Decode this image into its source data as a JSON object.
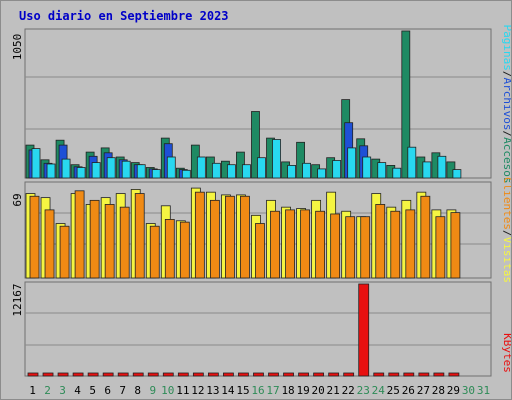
{
  "chart_data": {
    "type": "bar",
    "title": "Uso diario en Septiembre 2023",
    "categories": [
      "1",
      "2",
      "3",
      "4",
      "5",
      "6",
      "7",
      "8",
      "9",
      "10",
      "11",
      "12",
      "13",
      "14",
      "15",
      "16",
      "17",
      "18",
      "19",
      "20",
      "21",
      "22",
      "23",
      "24",
      "25",
      "26",
      "27",
      "28",
      "29",
      "30",
      "31"
    ],
    "weekend_days": [
      2,
      3,
      9,
      10,
      16,
      17,
      23,
      24,
      30,
      31
    ],
    "panels": [
      {
        "id": "top",
        "ymax_label": "1050",
        "ylim": [
          0,
          1050
        ],
        "series": [
          {
            "name": "Accesos",
            "color": "#1e8a63",
            "values": [
              235,
              130,
              270,
              95,
              185,
              215,
              150,
              110,
              75,
              285,
              70,
              235,
              150,
              120,
              185,
              475,
              285,
              115,
              255,
              95,
              145,
              560,
              280,
              135,
              90,
              1050,
              150,
              180,
              115,
              0,
              0
            ]
          },
          {
            "name": "Archivos",
            "color": "#1e50d6",
            "values": [
              200,
              105,
              235,
              80,
              155,
              180,
              130,
              95,
              65,
              245,
              60,
              0,
              0,
              0,
              0,
              0,
              0,
              0,
              0,
              0,
              0,
              395,
              230,
              0,
              0,
              0,
              0,
              0,
              0,
              0,
              0
            ]
          },
          {
            "name": "Páginas",
            "color": "#28d8f0",
            "values": [
              210,
              100,
              135,
              75,
              110,
              145,
              120,
              95,
              60,
              150,
              55,
              150,
              105,
              95,
              95,
              145,
              275,
              90,
              105,
              65,
              125,
              215,
              150,
              110,
              70,
              220,
              115,
              155,
              60,
              0,
              0
            ]
          }
        ]
      },
      {
        "id": "middle",
        "ymax_label": "69",
        "ylim": [
          0,
          69
        ],
        "series": [
          {
            "name": "Visitas",
            "color": "#f5f542",
            "values": [
              62,
              59,
              40,
              62,
              54,
              59,
              62,
              65,
              40,
              53,
              42,
              66,
              63,
              61,
              61,
              46,
              57,
              52,
              51,
              57,
              63,
              49,
              45,
              62,
              52,
              57,
              63,
              50,
              50,
              0,
              0
            ]
          },
          {
            "name": "Clientes",
            "color": "#f08a14",
            "values": [
              60,
              50,
              38,
              64,
              57,
              54,
              52,
              62,
              38,
              43,
              41,
              63,
              57,
              60,
              60,
              40,
              49,
              50,
              50,
              49,
              47,
              45,
              45,
              54,
              49,
              50,
              60,
              45,
              48,
              0,
              0
            ]
          }
        ]
      },
      {
        "id": "bottom",
        "ymax_label": "12167",
        "ylim": [
          0,
          12167
        ],
        "series": [
          {
            "name": "KBytes",
            "color": "#e81010",
            "values": [
              200,
              200,
              200,
              200,
              200,
              200,
              200,
              200,
              200,
              200,
              200,
              200,
              200,
              200,
              200,
              200,
              200,
              200,
              200,
              200,
              200,
              200,
              12167,
              200,
              200,
              200,
              200,
              200,
              200,
              0,
              0
            ]
          }
        ]
      }
    ],
    "legend_right_top": [
      "Páginas",
      "/",
      "Archivos",
      "/",
      "Accesos"
    ],
    "legend_right_mid": [
      "Clientes",
      "/",
      "Visitas"
    ],
    "legend_right_bottom": [
      "KBytes"
    ]
  }
}
